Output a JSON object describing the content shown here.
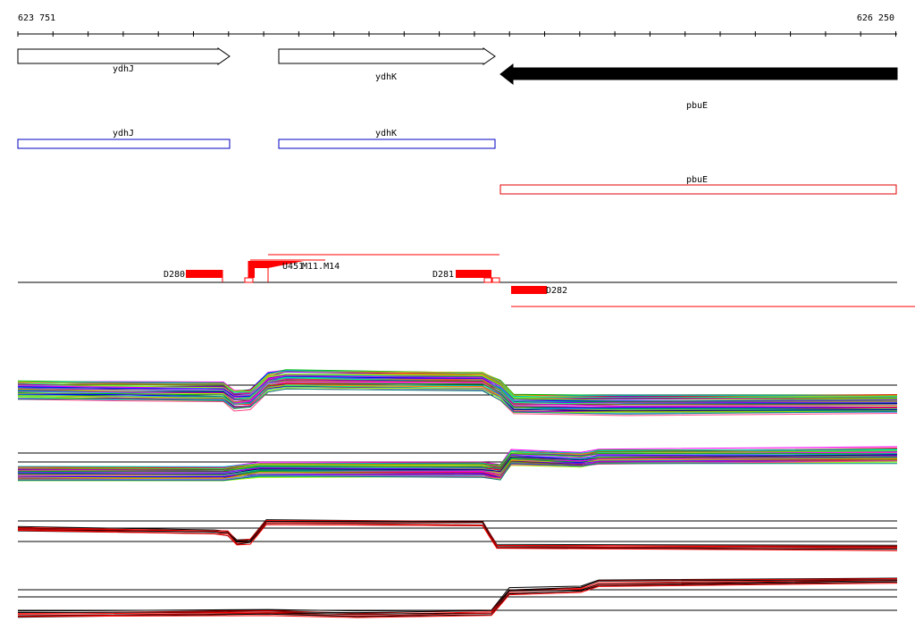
{
  "ruler": {
    "start_label": "623 751",
    "end_label": "626 250"
  },
  "genes": [
    {
      "name": "ydhJ",
      "strand": "forward"
    },
    {
      "name": "ydhK",
      "strand": "forward"
    },
    {
      "name": "pbuE",
      "strand": "reverse"
    }
  ],
  "annotations": [
    {
      "name": "ydhJ",
      "color": "#0000c0"
    },
    {
      "name": "ydhK",
      "color": "#0000c0"
    },
    {
      "name": "pbuE",
      "color": "#e00000"
    }
  ],
  "probe_track": {
    "features": [
      {
        "label": "D280"
      },
      {
        "label": "U451"
      },
      {
        "label": "M11.M14"
      },
      {
        "label": "D281"
      },
      {
        "label": "D282"
      }
    ]
  },
  "expression_panels": [
    {
      "name": "condition-panel-1",
      "style": "multicolor"
    },
    {
      "name": "condition-panel-2",
      "style": "multicolor"
    },
    {
      "name": "condition-panel-3",
      "style": "black-red"
    },
    {
      "name": "condition-panel-4",
      "style": "black-red"
    }
  ],
  "colors": {
    "feature_red": "#ff0000",
    "forward_gene_fill": "#ffffff",
    "reverse_gene_fill": "#000000",
    "annotation_blue": "#0000c0"
  }
}
